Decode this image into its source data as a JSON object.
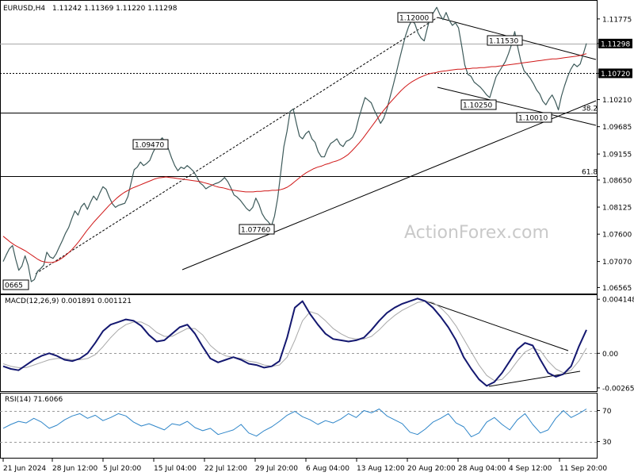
{
  "watermark": "ActionForex.com",
  "header": {
    "symbol": "EURUSD,H4",
    "ohlc": "1.11242 1.11369 1.11220 1.11298"
  },
  "macd": {
    "label": "MACD(12,26,9) 0.001891 0.001121"
  },
  "rsi": {
    "label": "RSI(14) 71.6066"
  },
  "colors": {
    "price": "#3d5a5a",
    "ma": "#d01818",
    "macd_main": "#141870",
    "macd_signal": "#a8a8a8",
    "rsi": "#2f86c9",
    "current_box": "#000000"
  },
  "chart_data": [
    {
      "type": "line",
      "pane": "price",
      "y_ticks": [
        "1.11775",
        "1.11298",
        "1.10720",
        "1.10210",
        "1.09685",
        "1.09155",
        "1.08650",
        "1.08125",
        "1.07600",
        "1.07070",
        "1.06565"
      ],
      "x_ticks": [
        "21 Jun 2024",
        "28 Jun 12:00",
        "5 Jul 20:00",
        "15 Jul 04:00",
        "22 Jul 12:00",
        "29 Jul 20:00",
        "6 Aug 04:00",
        "13 Aug 12:00",
        "20 Aug 20:00",
        "28 Aug 04:00",
        "4 Sep 12:00",
        "11 Sep 20:00"
      ],
      "ylim": [
        1.0651,
        1.1205
      ],
      "series": [
        {
          "values": [
            1.0707,
            1.072,
            1.0732,
            1.0738,
            1.0712,
            1.069,
            1.0698,
            1.0718,
            1.07,
            1.0668,
            1.0672,
            1.0688,
            1.0693,
            1.07,
            1.0725,
            1.0716,
            1.0713,
            1.0722,
            1.0735,
            1.0748,
            1.0762,
            1.0773,
            1.079,
            1.0805,
            1.0797,
            1.0813,
            1.082,
            1.0808,
            1.0822,
            1.0834,
            1.0826,
            1.084,
            1.0852,
            1.0847,
            1.0832,
            1.0819,
            1.0812,
            1.0816,
            1.0818,
            1.082,
            1.0833,
            1.086,
            1.0885,
            1.089,
            1.09,
            1.0893,
            1.0897,
            1.0903,
            1.0918,
            1.093,
            1.094,
            1.0947,
            1.0938,
            1.0925,
            1.0908,
            1.0893,
            1.0883,
            1.089,
            1.0887,
            1.0893,
            1.0888,
            1.0882,
            1.0872,
            1.086,
            1.0855,
            1.0848,
            1.0852,
            1.0855,
            1.0858,
            1.086,
            1.0864,
            1.087,
            1.0862,
            1.085,
            1.0836,
            1.0832,
            1.0826,
            1.0818,
            1.081,
            1.0805,
            1.0812,
            1.083,
            1.0818,
            1.08,
            1.079,
            1.0784,
            1.0776,
            1.0795,
            1.083,
            1.088,
            1.093,
            1.096,
            1.0998,
            1.1003,
            1.0975,
            1.095,
            1.0945,
            1.0955,
            1.096,
            1.0945,
            1.0938,
            1.092,
            1.091,
            1.091,
            1.0925,
            1.0936,
            1.094,
            1.0945,
            1.0934,
            1.093,
            1.094,
            1.0943,
            1.0948,
            1.096,
            1.0985,
            1.1005,
            1.1025,
            1.102,
            1.1015,
            1.1,
            1.0988,
            1.0975,
            1.0985,
            1.1002,
            1.1025,
            1.1048,
            1.1072,
            1.1098,
            1.1122,
            1.1145,
            1.1163,
            1.1175,
            1.1168,
            1.115,
            1.114,
            1.1135,
            1.116,
            1.1183,
            1.119,
            1.12,
            1.1186,
            1.1176,
            1.119,
            1.1175,
            1.1165,
            1.117,
            1.116,
            1.1125,
            1.1088,
            1.107,
            1.1066,
            1.1055,
            1.105,
            1.1045,
            1.1038,
            1.103,
            1.1025,
            1.1045,
            1.1065,
            1.1075,
            1.1085,
            1.1095,
            1.111,
            1.1128,
            1.1153,
            1.1122,
            1.1095,
            1.1077,
            1.107,
            1.1062,
            1.1052,
            1.104,
            1.1032,
            1.1018,
            1.1011,
            1.1022,
            1.103,
            1.1018,
            1.1001,
            1.1028,
            1.1048,
            1.1066,
            1.108,
            1.109,
            1.1085,
            1.109,
            1.111,
            1.113
          ]
        },
        {
          "values": [
            1.0756,
            1.075,
            1.0744,
            1.0739,
            1.0735,
            1.0731,
            1.0727,
            1.0722,
            1.0717,
            1.0712,
            1.0708,
            1.0706,
            1.0705,
            1.0705,
            1.0707,
            1.0711,
            1.0716,
            1.0722,
            1.0729,
            1.0737,
            1.0746,
            1.0756,
            1.0766,
            1.0775,
            1.0784,
            1.0792,
            1.08,
            1.0808,
            1.0816,
            1.0823,
            1.083,
            1.0836,
            1.0841,
            1.0845,
            1.0849,
            1.0852,
            1.0855,
            1.0858,
            1.0861,
            1.0864,
            1.0867,
            1.0869,
            1.087,
            1.0871,
            1.087,
            1.0869,
            1.0868,
            1.0867,
            1.0866,
            1.0865,
            1.0864,
            1.0863,
            1.0862,
            1.086,
            1.0858,
            1.0856,
            1.0853,
            1.0851,
            1.085,
            1.0848,
            1.0846,
            1.0845,
            1.0844,
            1.0843,
            1.0842,
            1.0842,
            1.0842,
            1.0843,
            1.0843,
            1.0844,
            1.0844,
            1.0845,
            1.0845,
            1.0846,
            1.0848,
            1.0851,
            1.0856,
            1.0862,
            1.0868,
            1.0874,
            1.0879,
            1.0883,
            1.0887,
            1.089,
            1.0892,
            1.0895,
            1.0897,
            1.09,
            1.0902,
            1.0905,
            1.0909,
            1.0914,
            1.0921,
            1.0929,
            1.0937,
            1.0946,
            1.0956,
            1.0966,
            1.0976,
            1.0986,
            1.0996,
            1.1005,
            1.1014,
            1.1022,
            1.103,
            1.1038,
            1.1045,
            1.1051,
            1.1056,
            1.106,
            1.1064,
            1.1067,
            1.107,
            1.1072,
            1.1073,
            1.1075,
            1.1076,
            1.1077,
            1.1078,
            1.1079,
            1.108,
            1.108,
            1.1081,
            1.1081,
            1.1082,
            1.1082,
            1.1083,
            1.1083,
            1.1084,
            1.1085,
            1.1085,
            1.1086,
            1.1087,
            1.1088,
            1.1089,
            1.109,
            1.1091,
            1.1092,
            1.1093,
            1.1094,
            1.1095,
            1.1096,
            1.1097,
            1.1098,
            1.1099,
            1.11,
            1.11,
            1.1101,
            1.1102,
            1.1103,
            1.1104,
            1.1105,
            1.1106,
            1.1108,
            1.111
          ]
        }
      ],
      "levels": [
        {
          "label": "1.11298",
          "value": 1.11298,
          "style": "solid-gray",
          "current": true
        },
        {
          "label": "1.10720",
          "value": 1.1072,
          "style": "dashed",
          "current": true
        },
        {
          "label": "38.2",
          "value": 1.0995,
          "style": "solid"
        },
        {
          "label": "61.8",
          "value": 1.0872,
          "style": "solid"
        }
      ],
      "annotations": [
        "1.12000",
        "1.11530",
        "1.10250",
        "1.10010",
        "1.09470",
        "1.07760",
        "0665"
      ]
    },
    {
      "type": "line",
      "pane": "macd",
      "y_ticks": [
        "0.004148",
        "0.00",
        "-0.002656"
      ],
      "ylim": [
        -0.00272,
        0.00422
      ],
      "series": [
        {
          "name": "MACD",
          "values": [
            -0.001,
            -0.0012,
            -0.0013,
            -0.0009,
            -0.0005,
            -0.0002,
            0.0,
            -0.0002,
            -0.0005,
            -0.0006,
            -0.0004,
            0.0,
            0.0008,
            0.0017,
            0.0022,
            0.0024,
            0.0026,
            0.0025,
            0.0021,
            0.0014,
            0.0009,
            0.001,
            0.0015,
            0.002,
            0.0022,
            0.0015,
            0.0005,
            -0.0004,
            -0.0007,
            -0.0005,
            -0.0003,
            -0.0005,
            -0.0008,
            -0.0009,
            -0.0011,
            -0.001,
            -0.0006,
            0.0012,
            0.0035,
            0.004,
            0.003,
            0.0022,
            0.0015,
            0.0011,
            0.001,
            0.0009,
            0.001,
            0.0012,
            0.0018,
            0.0025,
            0.0031,
            0.0035,
            0.0038,
            0.004,
            0.0042,
            0.004,
            0.0035,
            0.0028,
            0.002,
            0.001,
            -0.0003,
            -0.0012,
            -0.002,
            -0.0025,
            -0.0022,
            -0.0015,
            -0.0006,
            0.0003,
            0.0008,
            0.0006,
            -0.0005,
            -0.0015,
            -0.0018,
            -0.0016,
            -0.001,
            0.0005,
            0.0018
          ]
        },
        {
          "name": "Signal",
          "values": [
            -0.0008,
            -0.001,
            -0.0011,
            -0.0011,
            -0.0009,
            -0.0007,
            -0.0005,
            -0.0004,
            -0.0004,
            -0.0005,
            -0.0005,
            -0.0004,
            -0.0001,
            0.0005,
            0.0012,
            0.0018,
            0.0022,
            0.0024,
            0.0024,
            0.0021,
            0.0016,
            0.0013,
            0.0013,
            0.0016,
            0.0019,
            0.0019,
            0.0014,
            0.0006,
            0.0001,
            -0.0002,
            -0.0003,
            -0.0004,
            -0.0006,
            -0.0007,
            -0.0009,
            -0.001,
            -0.0009,
            -0.0003,
            0.001,
            0.0025,
            0.0032,
            0.003,
            0.0025,
            0.0019,
            0.0015,
            0.0012,
            0.0011,
            0.0011,
            0.0013,
            0.0018,
            0.0024,
            0.0029,
            0.0033,
            0.0036,
            0.0039,
            0.004,
            0.0039,
            0.0035,
            0.0029,
            0.0021,
            0.0011,
            0.0001,
            -0.0009,
            -0.0017,
            -0.0021,
            -0.002,
            -0.0014,
            -0.0006,
            0.0001,
            0.0004,
            0.0002,
            -0.0006,
            -0.0012,
            -0.0015,
            -0.0013,
            -0.0006,
            0.0004
          ]
        }
      ]
    },
    {
      "type": "line",
      "pane": "rsi",
      "y_ticks": [
        "70",
        "30"
      ],
      "ylim": [
        10,
        90
      ],
      "series": [
        {
          "name": "RSI",
          "values": [
            47,
            52,
            56,
            54,
            60,
            55,
            47,
            51,
            58,
            63,
            66,
            60,
            64,
            57,
            61,
            66,
            63,
            55,
            50,
            53,
            49,
            45,
            53,
            51,
            56,
            48,
            44,
            47,
            39,
            42,
            45,
            52,
            41,
            37,
            44,
            49,
            56,
            64,
            69,
            62,
            58,
            52,
            57,
            54,
            59,
            66,
            61,
            70,
            67,
            72,
            63,
            58,
            53,
            42,
            39,
            46,
            55,
            60,
            66,
            54,
            49,
            36,
            41,
            55,
            61,
            52,
            45,
            58,
            66,
            52,
            41,
            45,
            60,
            70,
            61,
            66,
            72
          ]
        }
      ]
    }
  ]
}
